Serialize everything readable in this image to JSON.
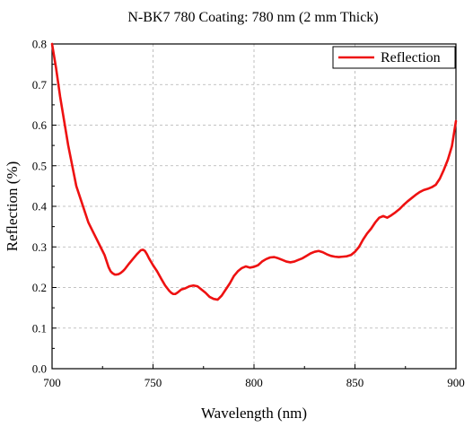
{
  "chart_data": {
    "type": "line",
    "title": "N-BK7 780 Coating: 780 nm (2 mm Thick)",
    "xlabel": "Wavelength (nm)",
    "ylabel": "Reflection (%)",
    "xlim": [
      700,
      900
    ],
    "ylim": [
      0,
      0.8
    ],
    "xticks": [
      "700",
      "750",
      "800",
      "850",
      "900"
    ],
    "yticks": [
      "0.0",
      "0.1",
      "0.2",
      "0.3",
      "0.4",
      "0.5",
      "0.6",
      "0.7",
      "0.8"
    ],
    "grid": true,
    "legend_position": "top-right",
    "series": [
      {
        "name": "Reflection",
        "color": "#ee1111",
        "x": [
          700,
          702,
          704,
          706,
          708,
          710,
          712,
          714,
          716,
          718,
          720,
          722,
          724,
          726,
          727,
          728,
          729,
          730,
          731,
          732,
          733,
          734,
          735,
          736,
          738,
          740,
          742,
          743,
          744,
          745,
          746,
          747,
          748,
          750,
          752,
          754,
          756,
          758,
          759,
          760,
          761,
          762,
          764,
          766,
          768,
          770,
          772,
          774,
          776,
          778,
          780,
          782,
          784,
          786,
          788,
          790,
          792,
          794,
          796,
          798,
          800,
          802,
          804,
          806,
          808,
          810,
          812,
          814,
          816,
          818,
          820,
          822,
          824,
          826,
          828,
          830,
          832,
          834,
          836,
          838,
          840,
          842,
          844,
          846,
          848,
          850,
          852,
          854,
          856,
          858,
          860,
          862,
          864,
          866,
          868,
          870,
          872,
          874,
          876,
          878,
          880,
          882,
          884,
          886,
          888,
          890,
          892,
          894,
          896,
          898,
          900
        ],
        "values": [
          0.8,
          0.74,
          0.67,
          0.61,
          0.55,
          0.5,
          0.45,
          0.42,
          0.39,
          0.36,
          0.34,
          0.32,
          0.3,
          0.28,
          0.265,
          0.25,
          0.24,
          0.235,
          0.232,
          0.232,
          0.233,
          0.236,
          0.24,
          0.245,
          0.258,
          0.27,
          0.282,
          0.287,
          0.292,
          0.293,
          0.29,
          0.282,
          0.272,
          0.255,
          0.24,
          0.222,
          0.205,
          0.192,
          0.187,
          0.184,
          0.184,
          0.187,
          0.195,
          0.198,
          0.203,
          0.205,
          0.203,
          0.195,
          0.187,
          0.177,
          0.172,
          0.17,
          0.18,
          0.195,
          0.21,
          0.228,
          0.24,
          0.248,
          0.252,
          0.249,
          0.251,
          0.255,
          0.264,
          0.27,
          0.274,
          0.275,
          0.272,
          0.268,
          0.264,
          0.262,
          0.264,
          0.268,
          0.272,
          0.278,
          0.284,
          0.288,
          0.29,
          0.287,
          0.282,
          0.278,
          0.276,
          0.275,
          0.276,
          0.277,
          0.28,
          0.288,
          0.3,
          0.318,
          0.333,
          0.345,
          0.36,
          0.372,
          0.376,
          0.372,
          0.378,
          0.385,
          0.393,
          0.403,
          0.412,
          0.42,
          0.428,
          0.435,
          0.44,
          0.443,
          0.447,
          0.453,
          0.468,
          0.49,
          0.515,
          0.548,
          0.61
        ]
      }
    ]
  }
}
